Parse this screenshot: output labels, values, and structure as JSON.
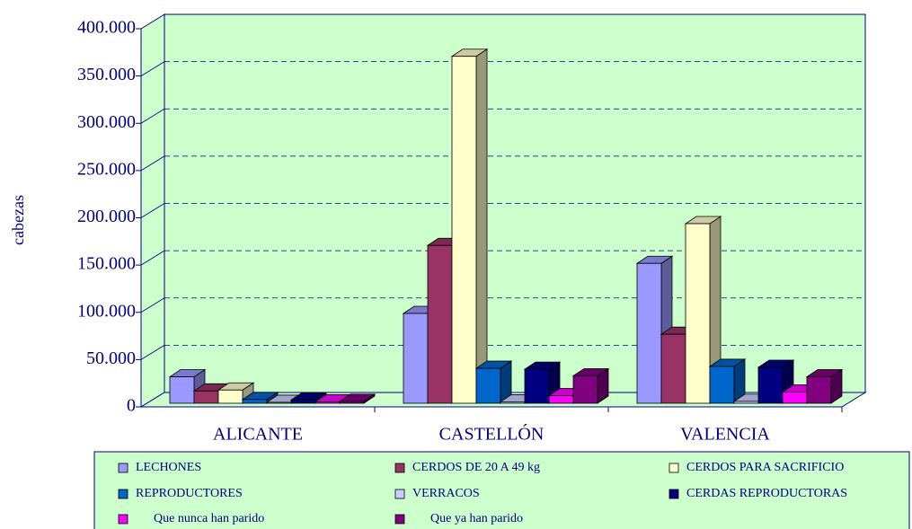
{
  "chart_data": {
    "type": "bar3d",
    "y_label": "cabezas",
    "categories": [
      "ALICANTE",
      "CASTELLÓN",
      "VALENCIA"
    ],
    "series": [
      {
        "name": "LECHONES",
        "color": "#9999ff",
        "values": [
          28000,
          95000,
          148000
        ]
      },
      {
        "name": "CERDOS DE 20 A 49 kg",
        "color": "#993366",
        "values": [
          13000,
          167000,
          73000
        ]
      },
      {
        "name": "CERDOS PARA SACRIFICIO",
        "color": "#ffffcc",
        "values": [
          14000,
          367000,
          190000
        ]
      },
      {
        "name": "REPRODUCTORES",
        "color": "#0066cc",
        "values": [
          4000,
          37000,
          39000
        ]
      },
      {
        "name": "VERRACOS",
        "color": "#ccccff",
        "values": [
          1000,
          1500,
          2000
        ]
      },
      {
        "name": "CERDAS REPRODUCTORAS",
        "color": "#000080",
        "values": [
          3500,
          36000,
          38000
        ]
      },
      {
        "name": "Que nunca han parido",
        "color": "#ff00ff",
        "values": [
          1500,
          8000,
          12000
        ]
      },
      {
        "name": "Que ya han parido",
        "color": "#800080",
        "values": [
          2000,
          29000,
          28000
        ]
      }
    ],
    "ylim": [
      0,
      400000
    ],
    "yticks": [
      0,
      {
        "value": 50000,
        "label": "50.000"
      },
      {
        "value": 100000,
        "label": "100.000"
      },
      {
        "value": 150000,
        "label": "150.000"
      },
      {
        "value": 200000,
        "label": "200.000"
      },
      {
        "value": 250000,
        "label": "250.000"
      },
      {
        "value": 300000,
        "label": "300.000"
      },
      {
        "value": 350000,
        "label": "350.000"
      },
      {
        "value": 400000,
        "label": "400.000"
      }
    ],
    "grid": true,
    "legend": "bottom"
  }
}
